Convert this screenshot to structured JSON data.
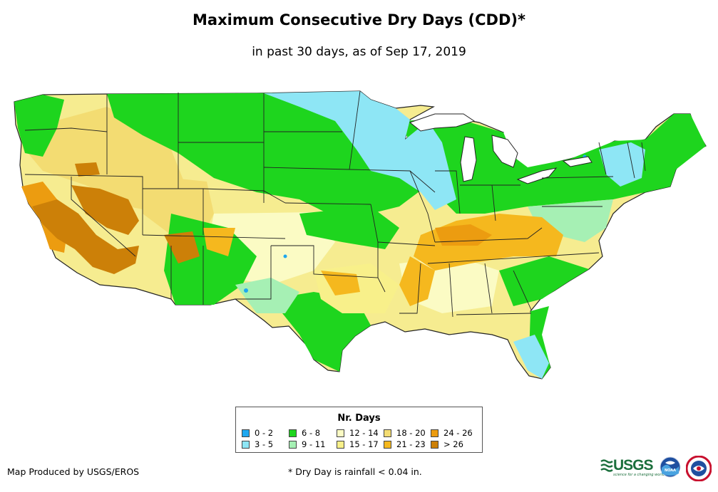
{
  "title": "Maximum Consecutive Dry Days (CDD)*",
  "subtitle": "in past 30 days, as of Sep 17, 2019",
  "legend": {
    "title": "Nr. Days",
    "items": [
      {
        "label": "0 - 2",
        "color": "#1ea8f0"
      },
      {
        "label": "3 - 5",
        "color": "#8ee6f5"
      },
      {
        "label": "6 - 8",
        "color": "#1ed51e"
      },
      {
        "label": "9 - 11",
        "color": "#a6f0b4"
      },
      {
        "label": "12 - 14",
        "color": "#fbfbc4"
      },
      {
        "label": "15 - 17",
        "color": "#f8f08a"
      },
      {
        "label": "18 - 20",
        "color": "#f3dc72"
      },
      {
        "label": "21 - 23",
        "color": "#f5b81e"
      },
      {
        "label": "24 - 26",
        "color": "#ec9c10"
      },
      {
        "label": "> 26",
        "color": "#cc8008"
      }
    ]
  },
  "credit": "Map Produced by USGS/EROS",
  "footnote": "* Dry Day is rainfall < 0.04 in.",
  "logos": {
    "usgs_text": "USGS",
    "usgs_tagline": "science for a changing world",
    "noaa_text": "NOAA"
  }
}
